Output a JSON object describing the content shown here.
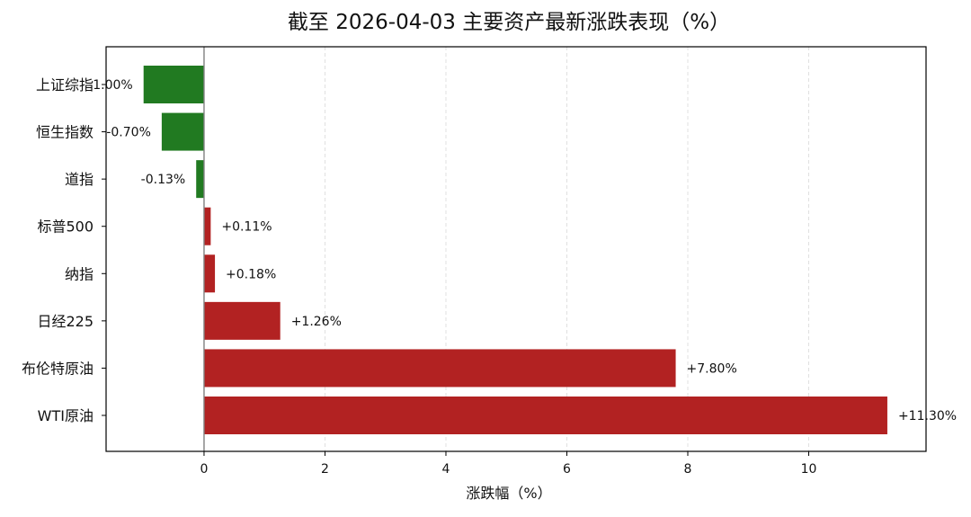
{
  "chart_data": {
    "type": "bar",
    "orientation": "horizontal",
    "title": "截至 2026-04-03 主要资产最新涨跌表现（%）",
    "xlabel": "涨跌幅（%）",
    "ylabel": "",
    "xlim": [
      -1.62,
      11.94
    ],
    "xticks": [
      0,
      2,
      4,
      6,
      8,
      10
    ],
    "grid": "vertical-dashed",
    "categories": [
      "上证综指",
      "恒生指数",
      "道指",
      "标普500",
      "纳指",
      "日经225",
      "布伦特原油",
      "WTI原油"
    ],
    "values": [
      -1.0,
      -0.7,
      -0.13,
      0.11,
      0.18,
      1.26,
      7.8,
      11.3
    ],
    "value_labels": [
      "-1.00%",
      "-0.70%",
      "-0.13%",
      "+0.11%",
      "+0.18%",
      "+1.26%",
      "+7.80%",
      "+11.30%"
    ],
    "colors": {
      "positive": "#b22222",
      "negative": "#217a21",
      "zero_line": "#808080",
      "grid": "#d9d9d9"
    }
  }
}
